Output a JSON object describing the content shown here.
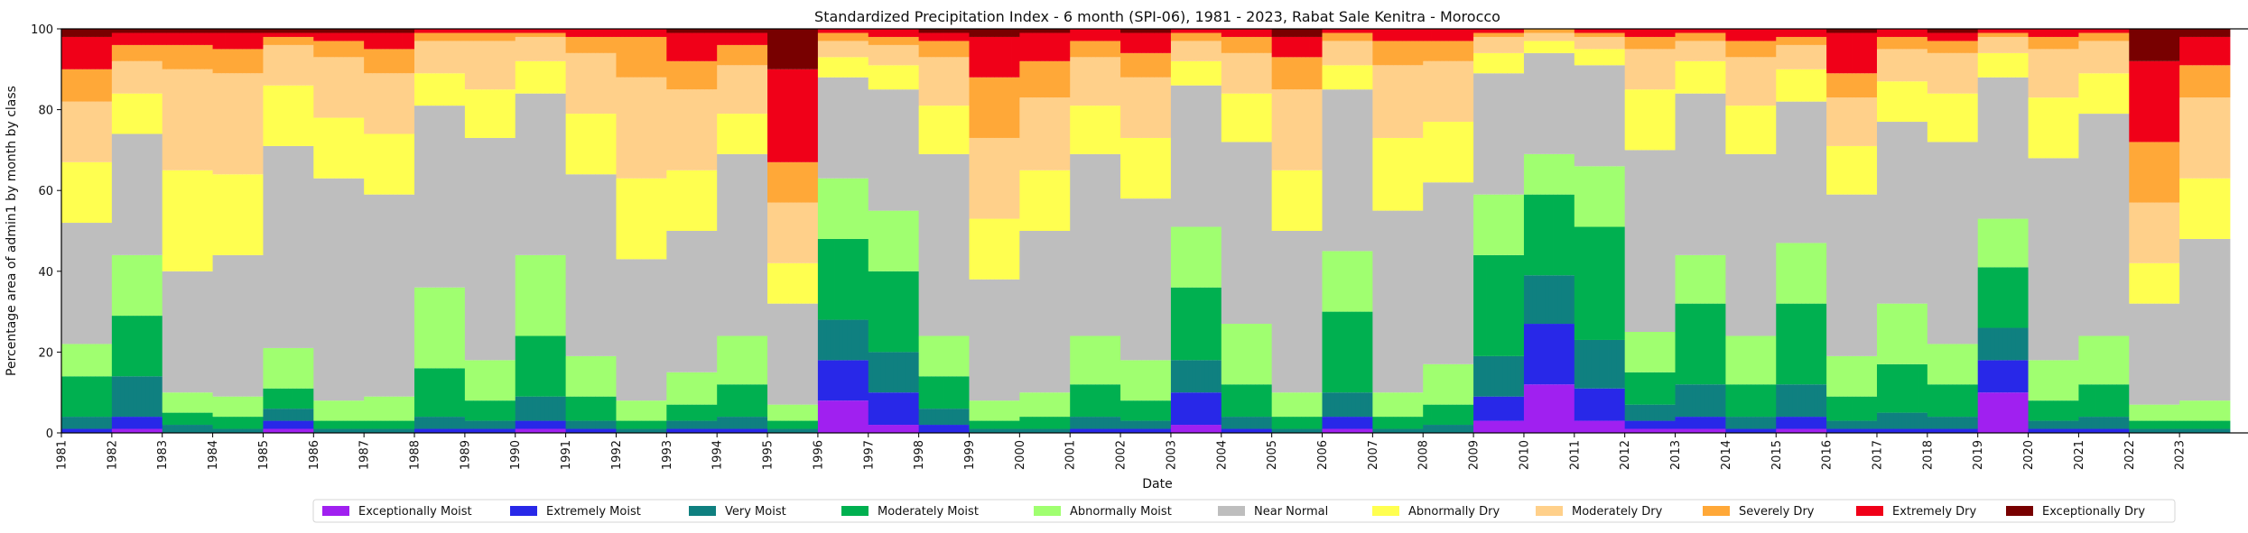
{
  "chart_data": {
    "type": "area",
    "stacked": true,
    "title": "Standardized Precipitation Index - 6 month (SPI-06), 1981 - 2023, Rabat Sale Kenitra - Morocco",
    "xlabel": "Date",
    "ylabel": "Percentage area of admin1 by month by class",
    "ylim": [
      0,
      100
    ],
    "yticks": [
      "0",
      "20",
      "40",
      "60",
      "80",
      "100"
    ],
    "xlim": [
      "1981-01",
      "2023-12"
    ],
    "xticks": [
      "1981",
      "1982",
      "1983",
      "1984",
      "1985",
      "1986",
      "1987",
      "1988",
      "1989",
      "1990",
      "1991",
      "1992",
      "1993",
      "1994",
      "1995",
      "1996",
      "1997",
      "1998",
      "1999",
      "2000",
      "2001",
      "2002",
      "2003",
      "2004",
      "2005",
      "2006",
      "2007",
      "2008",
      "2009",
      "2010",
      "2011",
      "2012",
      "2013",
      "2014",
      "2015",
      "2016",
      "2017",
      "2018",
      "2019",
      "2020",
      "2021",
      "2022",
      "2023"
    ],
    "grid": false,
    "legend_position": "bottom-center",
    "classes": [
      {
        "name": "Exceptionally Moist",
        "color": "#a020f0"
      },
      {
        "name": "Extremely Moist",
        "color": "#2828e8"
      },
      {
        "name": "Very Moist",
        "color": "#0f8080"
      },
      {
        "name": "Moderately Moist",
        "color": "#00b050"
      },
      {
        "name": "Abnormally Moist",
        "color": "#a0ff70"
      },
      {
        "name": "Near Normal",
        "color": "#bebebe"
      },
      {
        "name": "Abnormally Dry",
        "color": "#ffff50"
      },
      {
        "name": "Moderately Dry",
        "color": "#ffd08a"
      },
      {
        "name": "Severely Dry",
        "color": "#ffa838"
      },
      {
        "name": "Extremely Dry",
        "color": "#f00018"
      },
      {
        "name": "Exceptionally Dry",
        "color": "#780000"
      }
    ],
    "yearly_profile": [
      {
        "year": "1981",
        "values": [
          0,
          1,
          3,
          10,
          8,
          30,
          15,
          15,
          8,
          8,
          2
        ]
      },
      {
        "year": "1982",
        "values": [
          1,
          3,
          10,
          15,
          15,
          30,
          10,
          8,
          4,
          3,
          1
        ]
      },
      {
        "year": "1983",
        "values": [
          0,
          0,
          2,
          3,
          5,
          30,
          25,
          25,
          6,
          3,
          1
        ]
      },
      {
        "year": "1984",
        "values": [
          0,
          0,
          1,
          3,
          5,
          35,
          20,
          25,
          6,
          4,
          1
        ]
      },
      {
        "year": "1985",
        "values": [
          1,
          2,
          3,
          5,
          10,
          50,
          15,
          10,
          2,
          1,
          1
        ]
      },
      {
        "year": "1986",
        "values": [
          0,
          0,
          1,
          2,
          5,
          55,
          15,
          15,
          4,
          2,
          1
        ]
      },
      {
        "year": "1987",
        "values": [
          0,
          0,
          1,
          2,
          6,
          50,
          15,
          15,
          6,
          4,
          1
        ]
      },
      {
        "year": "1988",
        "values": [
          0,
          1,
          3,
          12,
          20,
          45,
          8,
          8,
          2,
          1,
          0
        ]
      },
      {
        "year": "1989",
        "values": [
          0,
          1,
          2,
          5,
          10,
          55,
          12,
          12,
          2,
          1,
          0
        ]
      },
      {
        "year": "1990",
        "values": [
          1,
          2,
          6,
          15,
          20,
          40,
          8,
          6,
          1,
          1,
          0
        ]
      },
      {
        "year": "1991",
        "values": [
          0,
          1,
          2,
          6,
          10,
          45,
          15,
          15,
          4,
          2,
          0
        ]
      },
      {
        "year": "1992",
        "values": [
          0,
          0,
          1,
          2,
          5,
          35,
          20,
          25,
          10,
          2,
          0
        ]
      },
      {
        "year": "1993",
        "values": [
          0,
          1,
          2,
          4,
          8,
          35,
          15,
          20,
          7,
          7,
          1
        ]
      },
      {
        "year": "1994",
        "values": [
          0,
          1,
          3,
          8,
          12,
          45,
          10,
          12,
          5,
          3,
          1
        ]
      },
      {
        "year": "1995",
        "values": [
          0,
          0,
          1,
          2,
          4,
          25,
          10,
          15,
          10,
          23,
          10
        ]
      },
      {
        "year": "1996",
        "values": [
          8,
          10,
          10,
          20,
          15,
          25,
          5,
          4,
          2,
          1,
          0
        ]
      },
      {
        "year": "1997",
        "values": [
          2,
          8,
          10,
          20,
          15,
          30,
          6,
          5,
          2,
          2,
          0
        ]
      },
      {
        "year": "1998",
        "values": [
          0,
          2,
          4,
          8,
          10,
          45,
          12,
          12,
          4,
          2,
          1
        ]
      },
      {
        "year": "1999",
        "values": [
          0,
          0,
          1,
          2,
          5,
          30,
          15,
          20,
          15,
          10,
          2
        ]
      },
      {
        "year": "2000",
        "values": [
          0,
          0,
          1,
          3,
          6,
          40,
          15,
          18,
          9,
          7,
          1
        ]
      },
      {
        "year": "2001",
        "values": [
          0,
          1,
          3,
          8,
          12,
          45,
          12,
          12,
          4,
          3,
          0
        ]
      },
      {
        "year": "2002",
        "values": [
          0,
          1,
          2,
          5,
          10,
          40,
          15,
          15,
          6,
          5,
          1
        ]
      },
      {
        "year": "2003",
        "values": [
          2,
          8,
          8,
          18,
          15,
          35,
          6,
          5,
          2,
          1,
          0
        ]
      },
      {
        "year": "2004",
        "values": [
          0,
          1,
          3,
          8,
          15,
          45,
          12,
          10,
          4,
          2,
          0
        ]
      },
      {
        "year": "2005",
        "values": [
          0,
          0,
          1,
          3,
          6,
          40,
          15,
          20,
          8,
          5,
          2
        ]
      },
      {
        "year": "2006",
        "values": [
          1,
          3,
          6,
          20,
          15,
          40,
          6,
          6,
          2,
          1,
          0
        ]
      },
      {
        "year": "2007",
        "values": [
          0,
          0,
          1,
          3,
          6,
          45,
          18,
          18,
          6,
          3,
          0
        ]
      },
      {
        "year": "2008",
        "values": [
          0,
          0,
          2,
          5,
          10,
          45,
          15,
          15,
          5,
          3,
          0
        ]
      },
      {
        "year": "2009",
        "values": [
          3,
          6,
          10,
          25,
          15,
          30,
          5,
          4,
          1,
          1,
          0
        ]
      },
      {
        "year": "2010",
        "values": [
          12,
          15,
          12,
          20,
          10,
          25,
          3,
          2,
          1,
          0,
          0
        ]
      },
      {
        "year": "2011",
        "values": [
          3,
          8,
          12,
          28,
          15,
          25,
          4,
          3,
          1,
          1,
          0
        ]
      },
      {
        "year": "2012",
        "values": [
          1,
          2,
          4,
          8,
          10,
          45,
          15,
          10,
          3,
          2,
          0
        ]
      },
      {
        "year": "2013",
        "values": [
          1,
          3,
          8,
          20,
          12,
          40,
          8,
          5,
          2,
          1,
          0
        ]
      },
      {
        "year": "2014",
        "values": [
          0,
          1,
          3,
          8,
          12,
          45,
          12,
          12,
          4,
          3,
          0
        ]
      },
      {
        "year": "2015",
        "values": [
          1,
          3,
          8,
          20,
          15,
          35,
          8,
          6,
          2,
          2,
          0
        ]
      },
      {
        "year": "2016",
        "values": [
          0,
          1,
          2,
          6,
          10,
          40,
          12,
          12,
          6,
          10,
          1
        ]
      },
      {
        "year": "2017",
        "values": [
          0,
          1,
          4,
          12,
          15,
          45,
          10,
          8,
          3,
          2,
          0
        ]
      },
      {
        "year": "2018",
        "values": [
          0,
          1,
          3,
          8,
          10,
          50,
          12,
          10,
          3,
          2,
          1
        ]
      },
      {
        "year": "2019",
        "values": [
          10,
          8,
          8,
          15,
          12,
          35,
          6,
          4,
          1,
          1,
          0
        ]
      },
      {
        "year": "2020",
        "values": [
          0,
          1,
          2,
          5,
          10,
          50,
          15,
          12,
          3,
          2,
          0
        ]
      },
      {
        "year": "2021",
        "values": [
          0,
          1,
          3,
          8,
          12,
          55,
          10,
          8,
          2,
          1,
          0
        ]
      },
      {
        "year": "2022",
        "values": [
          0,
          0,
          1,
          2,
          4,
          25,
          10,
          15,
          15,
          20,
          8
        ]
      },
      {
        "year": "2023",
        "values": [
          0,
          0,
          1,
          2,
          5,
          40,
          15,
          20,
          8,
          7,
          2
        ]
      }
    ]
  }
}
